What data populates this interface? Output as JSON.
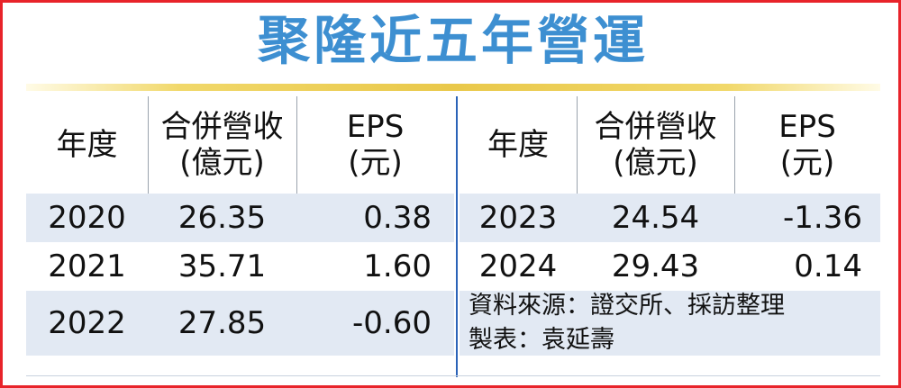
{
  "title": "聚隆近五年營運",
  "left": {
    "headers": {
      "year": "年度",
      "revenue_1": "合併營收",
      "revenue_2": "(億元)",
      "eps_1": "EPS",
      "eps_2": "(元)"
    },
    "rows": [
      {
        "year": "2020",
        "revenue": "26.35",
        "eps": "0.38"
      },
      {
        "year": "2021",
        "revenue": "35.71",
        "eps": "1.60"
      },
      {
        "year": "2022",
        "revenue": "27.85",
        "eps": "-0.60"
      }
    ]
  },
  "right": {
    "headers": {
      "year": "年度",
      "revenue_1": "合併營收",
      "revenue_2": "(億元)",
      "eps_1": "EPS",
      "eps_2": "(元)"
    },
    "rows": [
      {
        "year": "2023",
        "revenue": "24.54",
        "eps": "-1.36"
      },
      {
        "year": "2024",
        "revenue": "29.43",
        "eps": "0.14"
      }
    ]
  },
  "notes": {
    "source": "資料來源：證交所、採訪整理",
    "maker": "製表：袁延壽"
  },
  "colors": {
    "border": "#e8232a",
    "title": "#3d8fd1",
    "rule": "#e9c84a",
    "shade": "#e2e9f3",
    "divider": "#2b63b8"
  }
}
